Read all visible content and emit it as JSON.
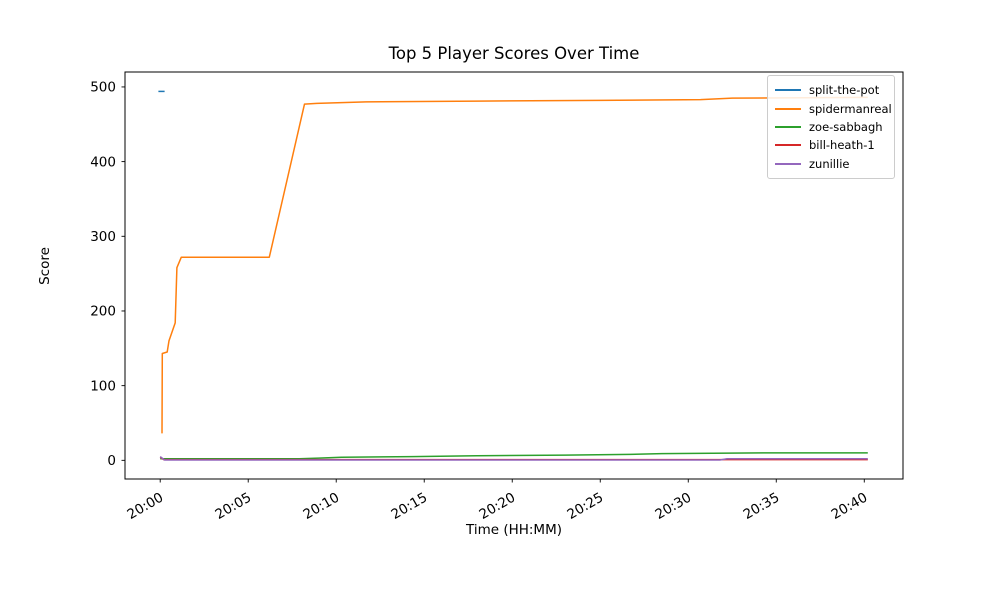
{
  "figure": {
    "background": "#ffffff",
    "axis_color": "#000000"
  },
  "chart_data": {
    "type": "line",
    "title": "Top 5 Player Scores Over Time",
    "xlabel": "Time (HH:MM)",
    "ylabel": "Score",
    "x_unit": "minutes after 20:00",
    "xlim": [
      -2.0,
      42.2
    ],
    "ylim": [
      -25,
      520
    ],
    "x_ticks": {
      "minutes": [
        0,
        5,
        10,
        15,
        20,
        25,
        30,
        35,
        40
      ],
      "labels": [
        "20:00",
        "20:05",
        "20:10",
        "20:15",
        "20:20",
        "20:25",
        "20:30",
        "20:35",
        "20:40"
      ]
    },
    "y_ticks": [
      0,
      100,
      200,
      300,
      400,
      500
    ],
    "grid": false,
    "legend_position": "upper right",
    "series": [
      {
        "name": "split-the-pot",
        "color": "#1f77b4",
        "points": [
          [
            -0.1,
            494
          ],
          [
            0.25,
            494
          ]
        ]
      },
      {
        "name": "spidermanreal",
        "color": "#ff7f0e",
        "points": [
          [
            0.1,
            36
          ],
          [
            0.12,
            143
          ],
          [
            0.4,
            145
          ],
          [
            0.5,
            160
          ],
          [
            0.85,
            184
          ],
          [
            0.95,
            258
          ],
          [
            1.2,
            272
          ],
          [
            6.2,
            272
          ],
          [
            8.2,
            477
          ],
          [
            8.9,
            478
          ],
          [
            11.7,
            480
          ],
          [
            18,
            481
          ],
          [
            25,
            482
          ],
          [
            30.7,
            483
          ],
          [
            32.5,
            485
          ],
          [
            40.2,
            486
          ]
        ]
      },
      {
        "name": "zoe-sabbagh",
        "color": "#2ca02c",
        "points": [
          [
            0,
            2
          ],
          [
            7.9,
            2
          ],
          [
            9,
            3
          ],
          [
            10.3,
            4
          ],
          [
            14.3,
            5
          ],
          [
            18,
            6
          ],
          [
            23,
            7
          ],
          [
            26.7,
            8
          ],
          [
            28.5,
            9
          ],
          [
            34.5,
            10
          ],
          [
            40.2,
            10
          ]
        ]
      },
      {
        "name": "bill-heath-1",
        "color": "#d62728",
        "points": [
          [
            0,
            4
          ],
          [
            0.2,
            1
          ],
          [
            40.2,
            1
          ]
        ]
      },
      {
        "name": "zunillie",
        "color": "#9467bd",
        "points": [
          [
            0,
            5
          ],
          [
            0.25,
            0.5
          ],
          [
            31.8,
            0.5
          ],
          [
            32.2,
            2
          ],
          [
            40.2,
            2
          ]
        ]
      }
    ]
  }
}
